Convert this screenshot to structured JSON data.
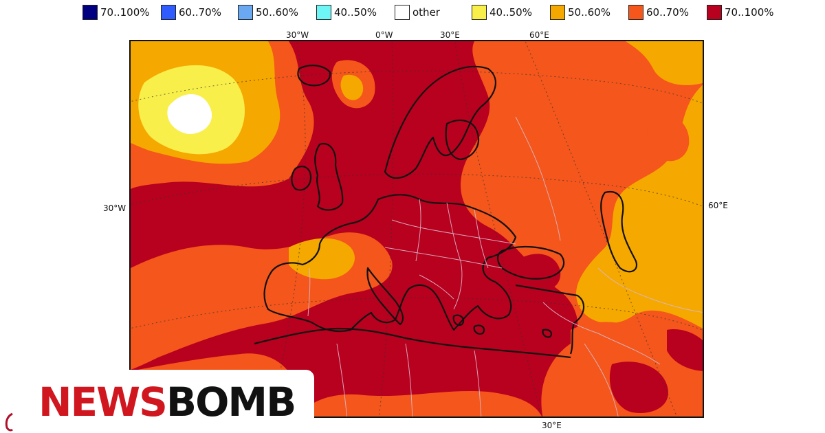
{
  "legend": [
    {
      "label": "70..100%",
      "color": "#000080"
    },
    {
      "label": "60..70%",
      "color": "#2e5cff"
    },
    {
      "label": "50..60%",
      "color": "#6aa8f2"
    },
    {
      "label": "40..50%",
      "color": "#6ef5f5"
    },
    {
      "label": "other",
      "color": "#ffffff"
    },
    {
      "label": "40..50%",
      "color": "#f8ef4a"
    },
    {
      "label": "50..60%",
      "color": "#f5a800"
    },
    {
      "label": "60..70%",
      "color": "#f4561b"
    },
    {
      "label": "70..100%",
      "color": "#b8001f"
    }
  ],
  "axis_labels": {
    "top": [
      "30°W",
      "0°W",
      "30°E",
      "60°E"
    ],
    "left": "30°W",
    "right": "60°E",
    "bottom": "30°E"
  },
  "brand": {
    "name_red": "NEWS",
    "name_black": "BOMB",
    "red": "#d0171f",
    "black": "#111111"
  },
  "map_colors": {
    "deep_red": "#b8001f",
    "red_orange": "#f4561b",
    "orange": "#f5a800",
    "yellow": "#f8ef4a",
    "white": "#ffffff",
    "coast": "#111111",
    "border": "#d8b8c8"
  }
}
